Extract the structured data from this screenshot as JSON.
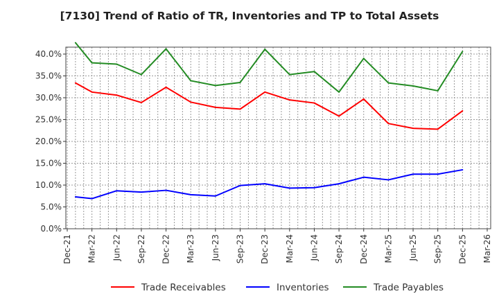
{
  "chart_data": {
    "type": "line",
    "title": "[7130]  Trend of Ratio of TR, Inventories and TP to Total Assets",
    "xlabel": "",
    "ylabel": "",
    "ylim": [
      0,
      40
    ],
    "y_ticks": [
      "0.0%",
      "5.0%",
      "10.0%",
      "15.0%",
      "20.0%",
      "25.0%",
      "30.0%",
      "35.0%",
      "40.0%"
    ],
    "x_ticks": [
      "Dec-21",
      "Mar-22",
      "Jun-22",
      "Sep-22",
      "Dec-22",
      "Mar-23",
      "Jun-23",
      "Sep-23",
      "Dec-23",
      "Mar-24",
      "Jun-24",
      "Sep-24",
      "Dec-24",
      "Mar-25",
      "Jun-25",
      "Sep-25",
      "Dec-25",
      "Mar-26"
    ],
    "x": [
      "Jan-22",
      "Mar-22",
      "Jun-22",
      "Sep-22",
      "Dec-22",
      "Mar-23",
      "Jun-23",
      "Sep-23",
      "Dec-23",
      "Mar-24",
      "Jun-24",
      "Sep-24",
      "Dec-24",
      "Mar-25",
      "Jun-25",
      "Sep-25",
      "Dec-25"
    ],
    "x_month_offset": [
      1,
      3,
      6,
      9,
      12,
      15,
      18,
      21,
      24,
      27,
      30,
      33,
      36,
      39,
      42,
      45,
      48
    ],
    "grid": true,
    "legend_position": "bottom",
    "series": [
      {
        "name": "Trade Receivables",
        "color": "#ff0000",
        "values": [
          33.4,
          31.3,
          30.6,
          28.9,
          32.4,
          29.0,
          27.8,
          27.4,
          31.3,
          29.5,
          28.8,
          25.8,
          29.7,
          24.1,
          23.0,
          22.8,
          27.0
        ]
      },
      {
        "name": "Inventories",
        "color": "#0000ff",
        "values": [
          7.3,
          6.9,
          8.7,
          8.4,
          8.8,
          7.8,
          7.5,
          9.9,
          10.3,
          9.3,
          9.4,
          10.3,
          11.8,
          11.2,
          12.5,
          12.5,
          13.5
        ]
      },
      {
        "name": "Trade Payables",
        "color": "#228b22",
        "values": [
          42.6,
          38.0,
          37.7,
          35.3,
          41.2,
          33.9,
          32.8,
          33.5,
          41.1,
          35.3,
          36.0,
          31.3,
          39.0,
          33.4,
          32.7,
          31.6,
          40.6
        ]
      }
    ]
  }
}
